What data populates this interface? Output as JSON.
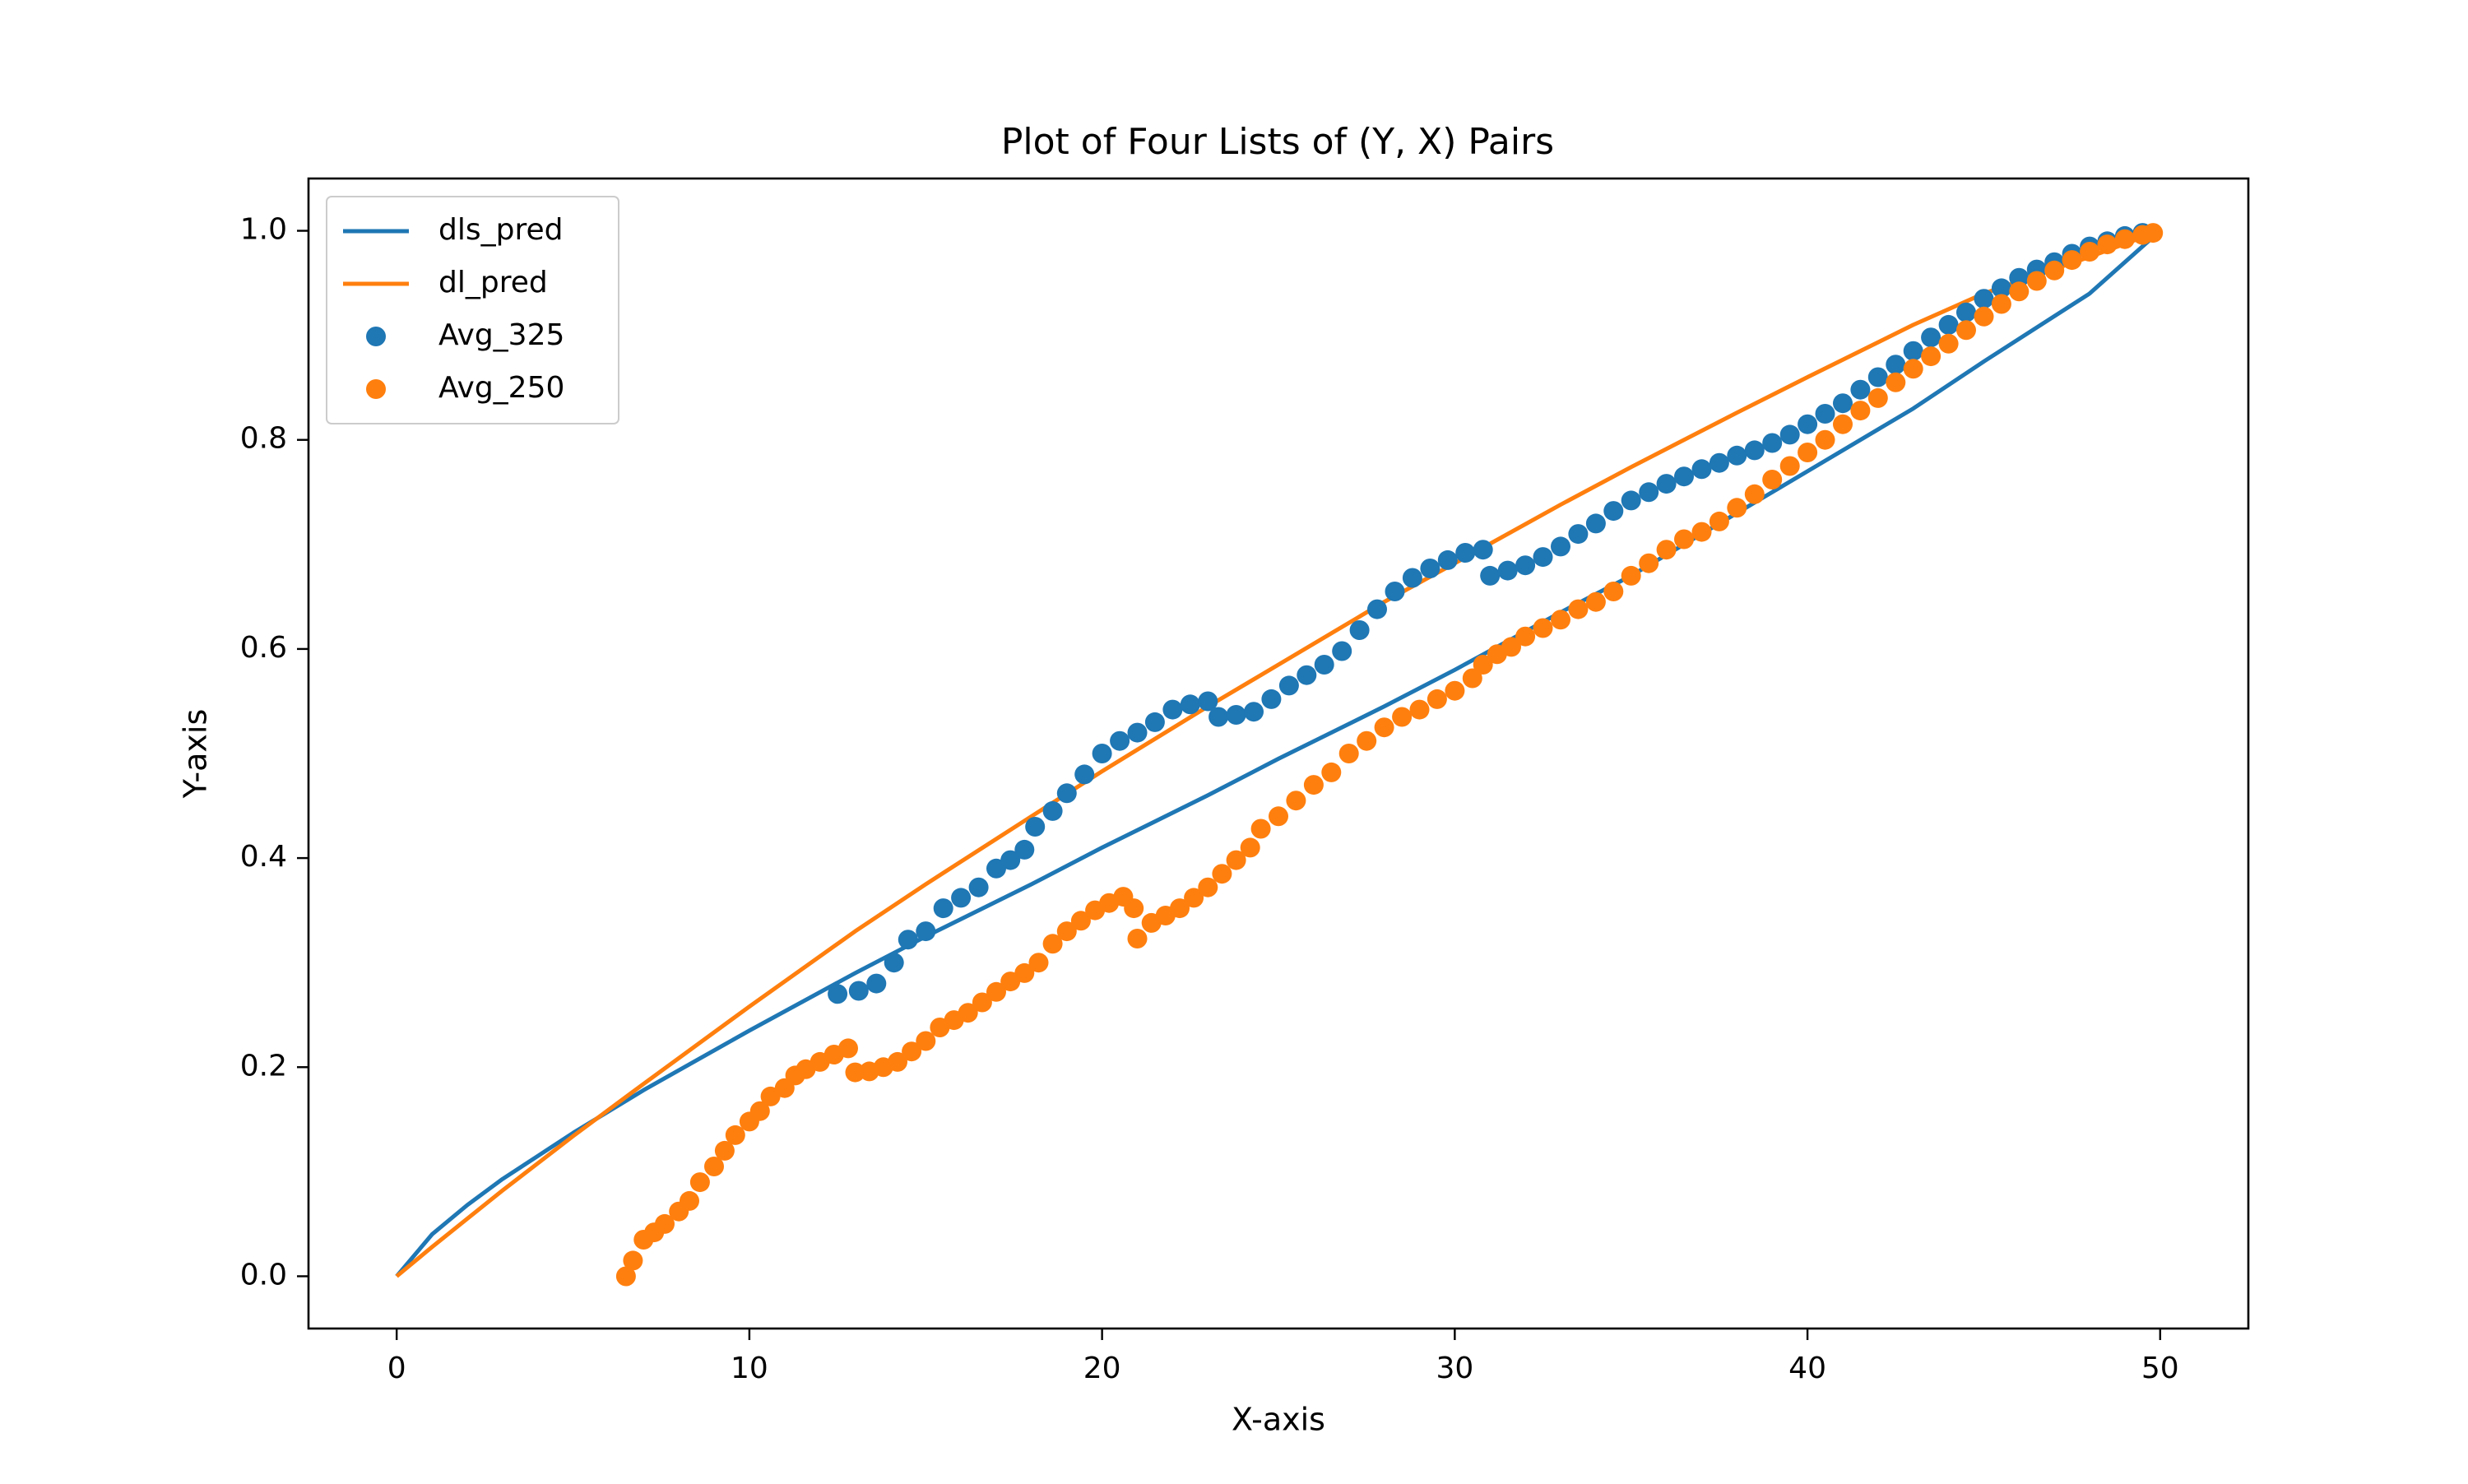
{
  "chart_data": {
    "type": "scatter",
    "title": "Plot of Four Lists of (Y, X) Pairs",
    "xlabel": "X-axis",
    "ylabel": "Y-axis",
    "xlim": [
      -2.5,
      52.5
    ],
    "ylim": [
      -0.05,
      1.05
    ],
    "x_ticks": [
      0,
      10,
      20,
      30,
      40,
      50
    ],
    "x_tick_labels": [
      "0",
      "10",
      "20",
      "30",
      "40",
      "50"
    ],
    "y_ticks": [
      0.0,
      0.2,
      0.4,
      0.6,
      0.8,
      1.0
    ],
    "y_tick_labels": [
      "0.0",
      "0.2",
      "0.4",
      "0.6",
      "0.8",
      "1.0"
    ],
    "grid": false,
    "legend_position": "top-left",
    "series": [
      {
        "name": "dls_pred",
        "kind": "line",
        "color": "#1f77b4",
        "points": [
          [
            0,
            0
          ],
          [
            1,
            0.04
          ],
          [
            2,
            0.068
          ],
          [
            3,
            0.093
          ],
          [
            4,
            0.115
          ],
          [
            5,
            0.137
          ],
          [
            7,
            0.178
          ],
          [
            10,
            0.235
          ],
          [
            13,
            0.29
          ],
          [
            15,
            0.325
          ],
          [
            18,
            0.375
          ],
          [
            20,
            0.41
          ],
          [
            23,
            0.46
          ],
          [
            25,
            0.495
          ],
          [
            28,
            0.545
          ],
          [
            30,
            0.58
          ],
          [
            33,
            0.635
          ],
          [
            35,
            0.67
          ],
          [
            38,
            0.73
          ],
          [
            40,
            0.77
          ],
          [
            43,
            0.83
          ],
          [
            45,
            0.875
          ],
          [
            48,
            0.94
          ],
          [
            50,
            1.0
          ]
        ]
      },
      {
        "name": "dl_pred",
        "kind": "line",
        "color": "#ff7f0e",
        "points": [
          [
            0,
            0
          ],
          [
            1,
            0.028
          ],
          [
            2,
            0.055
          ],
          [
            3,
            0.082
          ],
          [
            4,
            0.108
          ],
          [
            5,
            0.134
          ],
          [
            7,
            0.184
          ],
          [
            10,
            0.258
          ],
          [
            13,
            0.33
          ],
          [
            15,
            0.375
          ],
          [
            18,
            0.44
          ],
          [
            20,
            0.483
          ],
          [
            23,
            0.545
          ],
          [
            25,
            0.585
          ],
          [
            28,
            0.645
          ],
          [
            30,
            0.682
          ],
          [
            33,
            0.738
          ],
          [
            35,
            0.774
          ],
          [
            38,
            0.826
          ],
          [
            40,
            0.86
          ],
          [
            43,
            0.91
          ],
          [
            45,
            0.94
          ],
          [
            48,
            0.975
          ],
          [
            50,
            1.0
          ]
        ]
      },
      {
        "name": "Avg_325",
        "kind": "scatter",
        "color": "#1f77b4",
        "points": [
          [
            12.5,
            0.27
          ],
          [
            13.1,
            0.273
          ],
          [
            13.6,
            0.28
          ],
          [
            14.1,
            0.3
          ],
          [
            14.5,
            0.322
          ],
          [
            15,
            0.33
          ],
          [
            15.5,
            0.352
          ],
          [
            16,
            0.362
          ],
          [
            16.5,
            0.372
          ],
          [
            17,
            0.39
          ],
          [
            17.4,
            0.398
          ],
          [
            17.8,
            0.408
          ],
          [
            18.1,
            0.43
          ],
          [
            18.6,
            0.445
          ],
          [
            19,
            0.462
          ],
          [
            19.5,
            0.48
          ],
          [
            20,
            0.5
          ],
          [
            20.5,
            0.512
          ],
          [
            21,
            0.52
          ],
          [
            21.5,
            0.53
          ],
          [
            22,
            0.542
          ],
          [
            22.5,
            0.547
          ],
          [
            23,
            0.55
          ],
          [
            23.3,
            0.535
          ],
          [
            23.8,
            0.537
          ],
          [
            24.3,
            0.54
          ],
          [
            24.8,
            0.552
          ],
          [
            25.3,
            0.565
          ],
          [
            25.8,
            0.575
          ],
          [
            26.3,
            0.585
          ],
          [
            26.8,
            0.598
          ],
          [
            27.3,
            0.618
          ],
          [
            27.8,
            0.638
          ],
          [
            28.3,
            0.655
          ],
          [
            28.8,
            0.668
          ],
          [
            29.3,
            0.677
          ],
          [
            29.8,
            0.685
          ],
          [
            30.3,
            0.692
          ],
          [
            30.8,
            0.695
          ],
          [
            31,
            0.67
          ],
          [
            31.5,
            0.675
          ],
          [
            32,
            0.68
          ],
          [
            32.5,
            0.688
          ],
          [
            33,
            0.698
          ],
          [
            33.5,
            0.71
          ],
          [
            34,
            0.72
          ],
          [
            34.5,
            0.732
          ],
          [
            35,
            0.742
          ],
          [
            35.5,
            0.75
          ],
          [
            36,
            0.758
          ],
          [
            36.5,
            0.765
          ],
          [
            37,
            0.772
          ],
          [
            37.5,
            0.778
          ],
          [
            38,
            0.785
          ],
          [
            38.5,
            0.79
          ],
          [
            39,
            0.797
          ],
          [
            39.5,
            0.805
          ],
          [
            40,
            0.815
          ],
          [
            40.5,
            0.825
          ],
          [
            41,
            0.835
          ],
          [
            41.5,
            0.848
          ],
          [
            42,
            0.86
          ],
          [
            42.5,
            0.872
          ],
          [
            43,
            0.885
          ],
          [
            43.5,
            0.898
          ],
          [
            44,
            0.91
          ],
          [
            44.5,
            0.922
          ],
          [
            45,
            0.935
          ],
          [
            45.5,
            0.945
          ],
          [
            46,
            0.955
          ],
          [
            46.5,
            0.963
          ],
          [
            47,
            0.97
          ],
          [
            47.5,
            0.978
          ],
          [
            48,
            0.985
          ],
          [
            48.5,
            0.99
          ],
          [
            49,
            0.995
          ],
          [
            49.5,
            0.998
          ]
        ]
      },
      {
        "name": "Avg_250",
        "kind": "scatter",
        "color": "#ff7f0e",
        "points": [
          [
            6.5,
            0
          ],
          [
            6.7,
            0.015
          ],
          [
            7,
            0.035
          ],
          [
            7.3,
            0.042
          ],
          [
            7.6,
            0.05
          ],
          [
            8,
            0.062
          ],
          [
            8.3,
            0.072
          ],
          [
            8.6,
            0.09
          ],
          [
            9,
            0.105
          ],
          [
            9.3,
            0.12
          ],
          [
            9.6,
            0.135
          ],
          [
            10,
            0.148
          ],
          [
            10.3,
            0.158
          ],
          [
            10.6,
            0.172
          ],
          [
            11,
            0.18
          ],
          [
            11.3,
            0.192
          ],
          [
            11.6,
            0.198
          ],
          [
            12,
            0.205
          ],
          [
            12.4,
            0.212
          ],
          [
            12.8,
            0.218
          ],
          [
            13,
            0.195
          ],
          [
            13.4,
            0.196
          ],
          [
            13.8,
            0.2
          ],
          [
            14.2,
            0.205
          ],
          [
            14.6,
            0.215
          ],
          [
            15,
            0.225
          ],
          [
            15.4,
            0.238
          ],
          [
            15.8,
            0.245
          ],
          [
            16.2,
            0.252
          ],
          [
            16.6,
            0.262
          ],
          [
            17,
            0.272
          ],
          [
            17.4,
            0.282
          ],
          [
            17.8,
            0.29
          ],
          [
            18.2,
            0.3
          ],
          [
            18.6,
            0.318
          ],
          [
            19,
            0.33
          ],
          [
            19.4,
            0.34
          ],
          [
            19.8,
            0.35
          ],
          [
            20.2,
            0.357
          ],
          [
            20.6,
            0.363
          ],
          [
            20.9,
            0.352
          ],
          [
            21,
            0.323
          ],
          [
            21.4,
            0.338
          ],
          [
            21.8,
            0.345
          ],
          [
            22.2,
            0.352
          ],
          [
            22.6,
            0.362
          ],
          [
            23,
            0.372
          ],
          [
            23.4,
            0.385
          ],
          [
            23.8,
            0.398
          ],
          [
            24.2,
            0.41
          ],
          [
            24.5,
            0.428
          ],
          [
            25,
            0.44
          ],
          [
            25.5,
            0.455
          ],
          [
            26,
            0.47
          ],
          [
            26.5,
            0.482
          ],
          [
            27,
            0.5
          ],
          [
            27.5,
            0.512
          ],
          [
            28,
            0.525
          ],
          [
            28.5,
            0.535
          ],
          [
            29,
            0.542
          ],
          [
            29.5,
            0.552
          ],
          [
            30,
            0.56
          ],
          [
            30.5,
            0.572
          ],
          [
            30.8,
            0.585
          ],
          [
            31.2,
            0.595
          ],
          [
            31.6,
            0.602
          ],
          [
            32,
            0.612
          ],
          [
            32.5,
            0.62
          ],
          [
            33,
            0.628
          ],
          [
            33.5,
            0.638
          ],
          [
            34,
            0.645
          ],
          [
            34.5,
            0.655
          ],
          [
            35,
            0.67
          ],
          [
            35.5,
            0.682
          ],
          [
            36,
            0.695
          ],
          [
            36.5,
            0.705
          ],
          [
            37,
            0.712
          ],
          [
            37.5,
            0.722
          ],
          [
            38,
            0.735
          ],
          [
            38.5,
            0.748
          ],
          [
            39,
            0.762
          ],
          [
            39.5,
            0.775
          ],
          [
            40,
            0.788
          ],
          [
            40.5,
            0.8
          ],
          [
            41,
            0.815
          ],
          [
            41.5,
            0.828
          ],
          [
            42,
            0.84
          ],
          [
            42.5,
            0.855
          ],
          [
            43,
            0.868
          ],
          [
            43.5,
            0.88
          ],
          [
            44,
            0.892
          ],
          [
            44.5,
            0.905
          ],
          [
            45,
            0.918
          ],
          [
            45.5,
            0.93
          ],
          [
            46,
            0.942
          ],
          [
            46.5,
            0.952
          ],
          [
            47,
            0.962
          ],
          [
            47.5,
            0.972
          ],
          [
            48,
            0.98
          ],
          [
            48.5,
            0.987
          ],
          [
            49,
            0.992
          ],
          [
            49.5,
            0.996
          ],
          [
            49.8,
            0.998
          ]
        ]
      }
    ]
  }
}
